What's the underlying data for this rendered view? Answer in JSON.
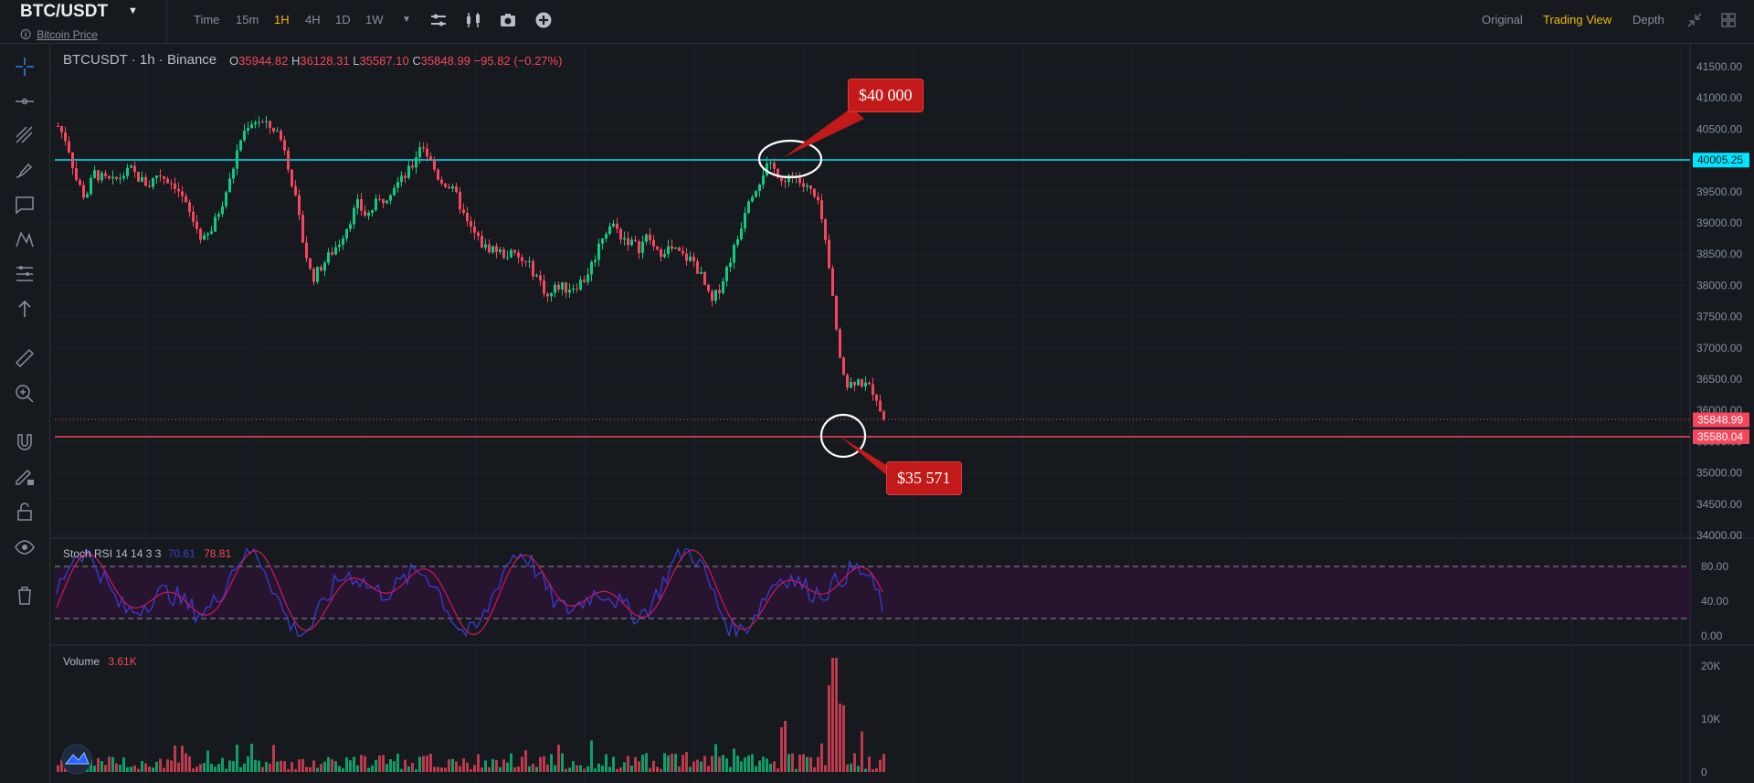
{
  "header": {
    "symbol": "BTC/USDT",
    "sub_label": "Bitcoin Price",
    "intervals": [
      {
        "label": "Time",
        "active": false
      },
      {
        "label": "15m",
        "active": false
      },
      {
        "label": "1H",
        "active": true
      },
      {
        "label": "4H",
        "active": false
      },
      {
        "label": "1D",
        "active": false
      },
      {
        "label": "1W",
        "active": false
      }
    ],
    "tool_icons": [
      "settings-sliders-icon",
      "indicator-icon",
      "camera-icon",
      "add-icon"
    ],
    "view_tabs": [
      {
        "label": "Original",
        "active": false
      },
      {
        "label": "Trading View",
        "active": true
      },
      {
        "label": "Depth",
        "active": false
      }
    ]
  },
  "left_tools": [
    "crosshair-icon",
    "horizontal-line-icon",
    "trend-lines-icon",
    "brush-icon",
    "text-comment-icon",
    "pattern-icon",
    "fib-levels-icon",
    "arrow-up-icon",
    "ruler-icon",
    "zoom-in-icon",
    "magnet-icon",
    "pencil-lock-icon",
    "unlock-icon",
    "eye-icon",
    "trash-icon"
  ],
  "main_legend": {
    "pair": "BTCUSDT",
    "interval": "1h",
    "exchange": "Binance",
    "open_label": "O",
    "open": "35944.82",
    "high_label": "H",
    "high": "36128.31",
    "low_label": "L",
    "low": "35587.10",
    "close_label": "C",
    "close": "35848.99",
    "change": "−95.82 (−0.27%)"
  },
  "price_axis": {
    "ticks": [
      "41500.00",
      "41000.00",
      "40500.00",
      "40000.00",
      "39500.00",
      "39000.00",
      "38500.00",
      "38000.00",
      "37500.00",
      "37000.00",
      "36500.00",
      "36000.00",
      "35500.00",
      "35000.00",
      "34500.00",
      "34000.00"
    ],
    "tags": [
      {
        "label": "40005.25",
        "bg": "#00e5ff",
        "fg": "#0c1a1f"
      },
      {
        "label": "35848.99",
        "bg": "#f6465d",
        "fg": "#ffffff"
      },
      {
        "label": "35580.04",
        "bg": "#f6465d",
        "fg": "#ffffff"
      }
    ]
  },
  "annotations": {
    "top_callout": "$40 000",
    "bottom_callout": "$35 571"
  },
  "rsi": {
    "label": "Stoch RSI 14 14 3 3",
    "k": "70.61",
    "d": "78.81",
    "ticks": [
      "80.00",
      "40.00",
      "0.00"
    ]
  },
  "volume": {
    "label": "Volume",
    "value": "3.61K",
    "ticks": [
      "20K",
      "10K",
      "0"
    ]
  },
  "colors": {
    "up": "#0ecb81",
    "down": "#f6465d",
    "resistance": "#00e5ff",
    "support": "#f6465d",
    "accent": "#f0b90b",
    "rsi_band": "#2a1432"
  },
  "chart_data": {
    "type": "candlestick",
    "interval": "1h",
    "close_path": [
      40550,
      40300,
      39700,
      39400,
      39800,
      39700,
      39650,
      39750,
      39850,
      39700,
      39600,
      39800,
      39700,
      39600,
      39300,
      39000,
      38700,
      38900,
      39300,
      39700,
      40300,
      40600,
      40650,
      40550,
      40500,
      40200,
      39500,
      38700,
      38100,
      38300,
      38500,
      38700,
      39000,
      39300,
      39100,
      39300,
      39400,
      39600,
      39700,
      39900,
      40300,
      40000,
      39700,
      39600,
      39400,
      39000,
      38800,
      38600,
      38600,
      38500,
      38500,
      38400,
      38300,
      38100,
      37800,
      38000,
      37950,
      38000,
      38100,
      38400,
      38800,
      39000,
      38800,
      38700,
      38600,
      38800,
      38500,
      38600,
      38550,
      38450,
      38400,
      38100,
      37700,
      38000,
      38400,
      38800,
      39400,
      39600,
      39900,
      39850,
      39700,
      39800,
      39600,
      39500,
      39200,
      38200,
      37000,
      36400,
      36500,
      36400,
      36300,
      35850
    ],
    "resistance_level": 40005.25,
    "support_level": 35580.04,
    "last_price": 35848.99
  }
}
